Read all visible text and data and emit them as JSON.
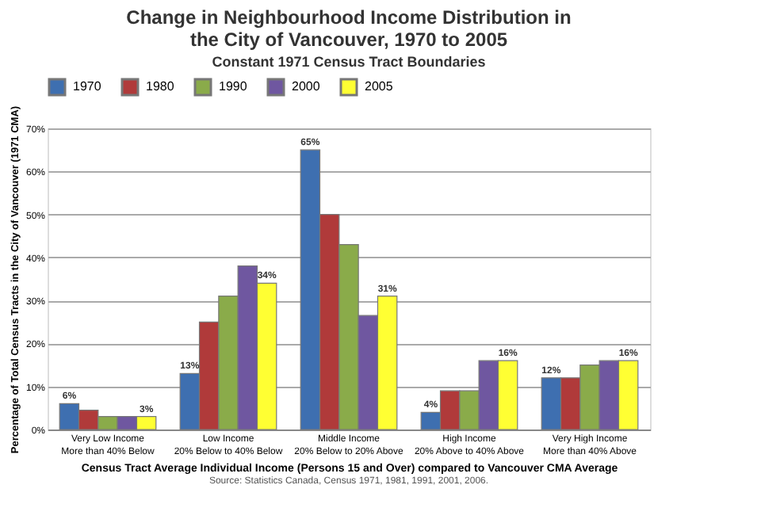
{
  "chart_data": {
    "type": "bar",
    "title": "Change in Neighbourhood Income Distribution in the City of Vancouver, 1970 to 2005",
    "subtitle": "Constant 1971 Census Tract Boundaries",
    "xlabel": "Census Tract Average Individual Income (Persons 15 and Over) compared to Vancouver CMA Average",
    "ylabel": "Percentage of Total Census Tracts in the City of Vancouver (1971 CMA)",
    "annotations": [
      "Source: Statistics Canada, Census 1971, 1981, 1991, 2001, 2006."
    ],
    "categories": [
      "Very Low Income\nMore than 40% Below",
      "Low Income\n20% Below to 40% Below",
      "Middle Income\n20% Below to 20% Above",
      "High Income\n20% Above to 40% Above",
      "Very High Income\nMore than 40% Above"
    ],
    "series": [
      {
        "name": "1970",
        "color": "#3e6fb0",
        "values": [
          6,
          13,
          65,
          4,
          12
        ],
        "value_labels": [
          "6%",
          "13%",
          "65%",
          "4%",
          "12%"
        ]
      },
      {
        "name": "1980",
        "color": "#b03a3a",
        "values": [
          4.5,
          25,
          50,
          9,
          12
        ]
      },
      {
        "name": "1990",
        "color": "#8aab4a",
        "values": [
          3,
          31,
          43,
          9,
          15
        ]
      },
      {
        "name": "2000",
        "color": "#6f57a0",
        "values": [
          3,
          38,
          26.5,
          16,
          16
        ]
      },
      {
        "name": "2005",
        "color": "#ffff33",
        "values": [
          3,
          34,
          31,
          16,
          16
        ],
        "value_labels": [
          "3%",
          "34%",
          "31%",
          "16%",
          "16%"
        ]
      }
    ],
    "ylim": [
      0,
      70
    ],
    "yticks": [
      {
        "value": 0,
        "label": "0%"
      },
      {
        "value": 10,
        "label": "10%"
      },
      {
        "value": 20,
        "label": "20%"
      },
      {
        "value": 30,
        "label": "30%"
      },
      {
        "value": 40,
        "label": "40%"
      },
      {
        "value": 50,
        "label": "50%"
      },
      {
        "value": 60,
        "label": "60%"
      },
      {
        "value": 70,
        "label": "70%"
      }
    ],
    "grid": "y",
    "legend": "top"
  }
}
